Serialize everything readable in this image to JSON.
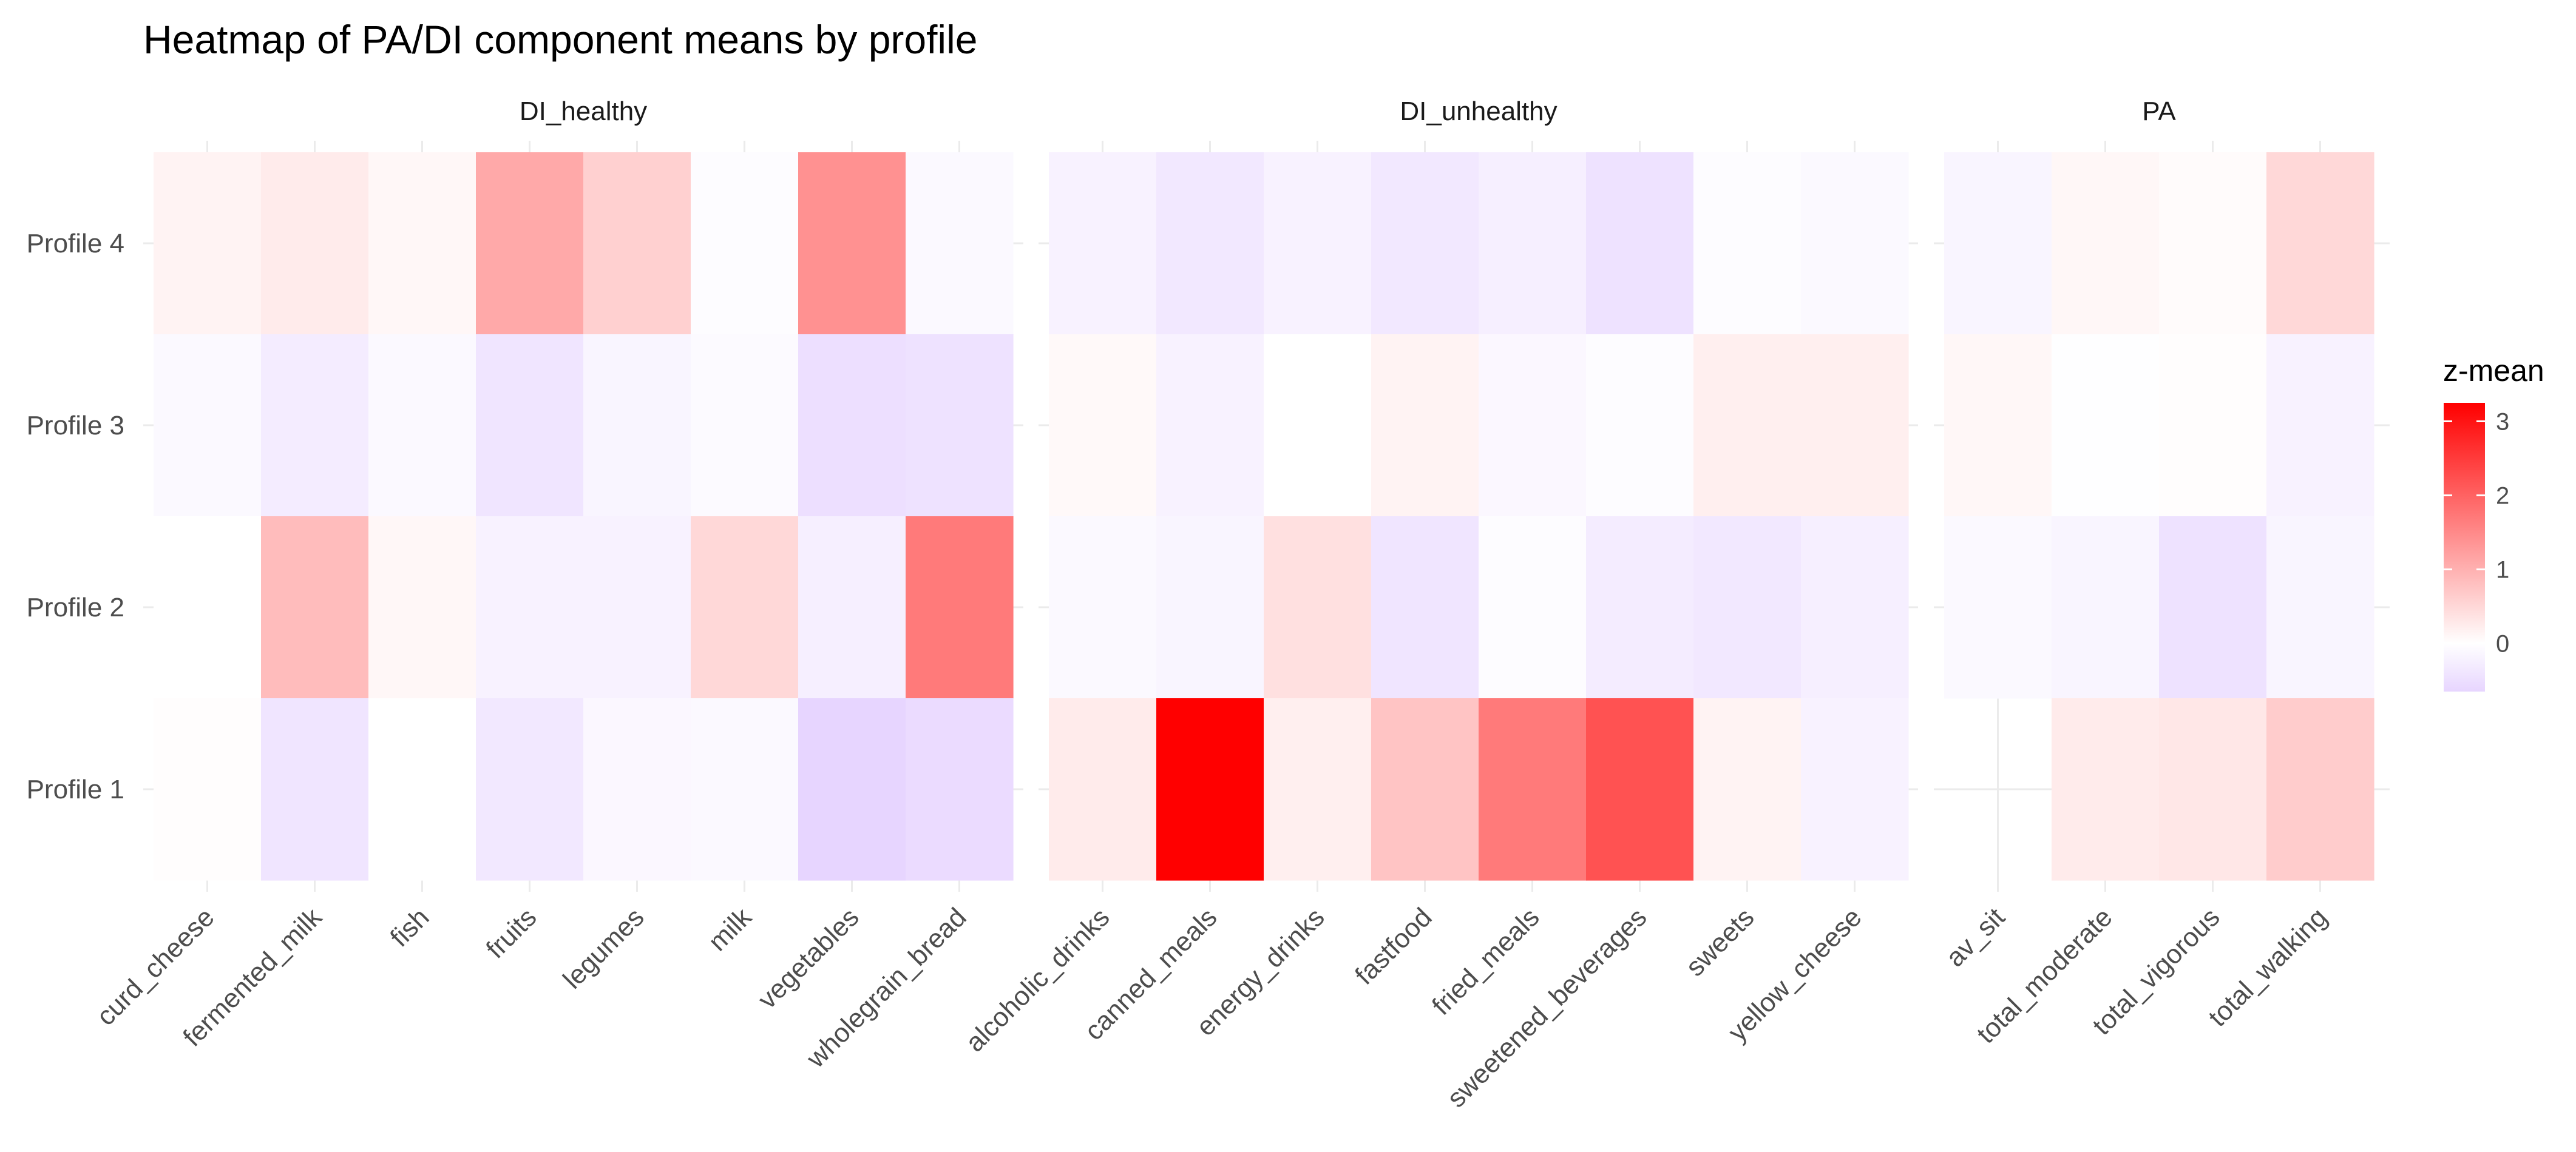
{
  "chart_data": {
    "type": "heatmap",
    "title": "Heatmap of PA/DI component means by profile",
    "xlabel": "",
    "ylabel": "",
    "rows": [
      "Profile 4",
      "Profile 3",
      "Profile 2",
      "Profile 1"
    ],
    "facets": [
      {
        "name": "DI_healthy",
        "columns": [
          "curd_cheese",
          "fermented_milk",
          "fish",
          "fruits",
          "legumes",
          "milk",
          "vegetables",
          "wholegrain_bread"
        ],
        "values": [
          [
            0.15,
            0.25,
            0.1,
            1.1,
            0.6,
            -0.05,
            1.4,
            -0.1
          ],
          [
            -0.1,
            -0.3,
            -0.1,
            -0.4,
            -0.15,
            -0.08,
            -0.5,
            -0.45
          ],
          [
            0.0,
            0.85,
            0.1,
            -0.2,
            -0.2,
            0.5,
            -0.25,
            1.7
          ],
          [
            0.02,
            -0.4,
            0.0,
            -0.35,
            -0.12,
            -0.1,
            -0.65,
            -0.55
          ]
        ]
      },
      {
        "name": "DI_unhealthy",
        "columns": [
          "alcoholic_drinks",
          "canned_meals",
          "energy_drinks",
          "fastfood",
          "fried_meals",
          "sweetened_beverages",
          "sweets",
          "yellow_cheese"
        ],
        "values": [
          [
            -0.2,
            -0.35,
            -0.2,
            -0.35,
            -0.25,
            -0.45,
            -0.05,
            -0.1
          ],
          [
            0.08,
            -0.2,
            0.0,
            0.15,
            -0.12,
            -0.05,
            0.2,
            0.2
          ],
          [
            -0.1,
            -0.15,
            0.4,
            -0.4,
            -0.05,
            -0.3,
            -0.35,
            -0.25
          ],
          [
            0.25,
            3.25,
            0.2,
            0.75,
            1.7,
            2.2,
            0.15,
            -0.2
          ]
        ]
      },
      {
        "name": "PA",
        "columns": [
          "av_sit",
          "total_moderate",
          "total_vigorous",
          "total_walking"
        ],
        "values": [
          [
            -0.15,
            0.1,
            0.05,
            0.5
          ],
          [
            0.1,
            -0.02,
            0.02,
            -0.2
          ],
          [
            -0.1,
            -0.15,
            -0.45,
            -0.15
          ],
          [
            null,
            0.25,
            0.3,
            0.65
          ]
        ]
      }
    ],
    "legend": {
      "title": "z-mean",
      "ticks": [
        3,
        2,
        1,
        0
      ],
      "range": [
        -0.65,
        3.25
      ],
      "low_color": "#E7D5FF",
      "mid_color": "#FFFFFF",
      "high_color": "#FF0000",
      "midpoint": 0
    },
    "grid": true,
    "legend_position": "right"
  }
}
